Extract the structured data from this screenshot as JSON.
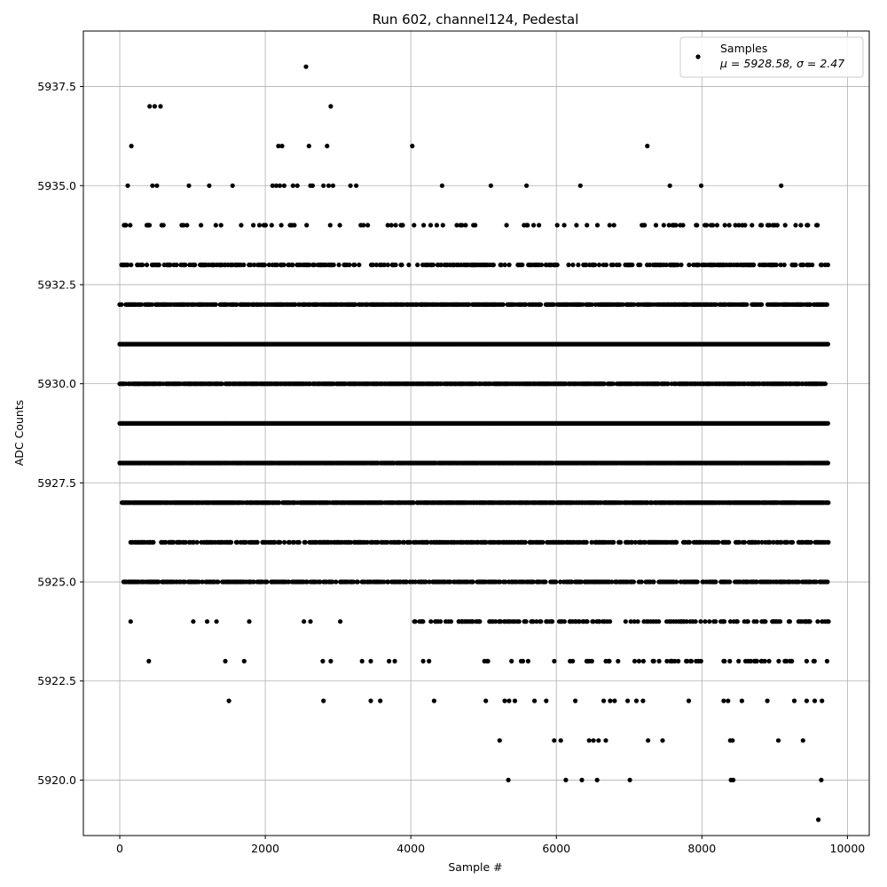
{
  "chart_data": {
    "type": "scatter",
    "title": "Run 602, channel124, Pedestal",
    "xlabel": "Sample #",
    "ylabel": "ADC Counts",
    "xlim": [
      -500,
      10300
    ],
    "ylim": [
      5918.6,
      5938.9
    ],
    "x_ticks": [
      0,
      2000,
      4000,
      6000,
      8000,
      10000
    ],
    "x_tick_labels": [
      "0",
      "2000",
      "4000",
      "6000",
      "8000",
      "10000"
    ],
    "y_ticks": [
      5920.0,
      5922.5,
      5925.0,
      5927.5,
      5930.0,
      5932.5,
      5935.0,
      5937.5
    ],
    "y_tick_labels": [
      "5920.0",
      "5922.5",
      "5925.0",
      "5927.5",
      "5930.0",
      "5932.5",
      "5935.0",
      "5937.5"
    ],
    "grid": true,
    "legend_position": "top-right",
    "marker_color": "#000000",
    "n_samples": 9740,
    "series": [
      {
        "name": "Samples",
        "stats_label": "μ = 5928.58, σ = 2.47",
        "points": [
          [
            0,
            5931
          ],
          [
            0,
            5932
          ],
          [
            0,
            5928
          ],
          [
            20,
            5930
          ],
          [
            40,
            5929
          ],
          [
            60,
            5933
          ],
          [
            80,
            5934
          ],
          [
            100,
            5927
          ],
          [
            110,
            5935
          ],
          [
            120,
            5925
          ],
          [
            150,
            5924
          ],
          [
            160,
            5936
          ],
          [
            170,
            5926
          ],
          [
            400,
            5923
          ],
          [
            410,
            5937
          ],
          [
            480,
            5937
          ],
          [
            560,
            5937
          ],
          [
            450,
            5935
          ],
          [
            510,
            5935
          ],
          [
            950,
            5935
          ],
          [
            1230,
            5935
          ],
          [
            1550,
            5935
          ],
          [
            1500,
            5922
          ],
          [
            1450,
            5923
          ],
          [
            1710,
            5923
          ],
          [
            1780,
            5924
          ],
          [
            1010,
            5924
          ],
          [
            1200,
            5924
          ],
          [
            1330,
            5924
          ],
          [
            2180,
            5936
          ],
          [
            2230,
            5936
          ],
          [
            2100,
            5935
          ],
          [
            2150,
            5935
          ],
          [
            2200,
            5935
          ],
          [
            2260,
            5935
          ],
          [
            2380,
            5935
          ],
          [
            2440,
            5935
          ],
          [
            2560,
            5938
          ],
          [
            2600,
            5936
          ],
          [
            2620,
            5935
          ],
          [
            2650,
            5935
          ],
          [
            2850,
            5936
          ],
          [
            2900,
            5937
          ],
          [
            2800,
            5935
          ],
          [
            2870,
            5935
          ],
          [
            2930,
            5935
          ],
          [
            3170,
            5935
          ],
          [
            3250,
            5935
          ],
          [
            2530,
            5924
          ],
          [
            2620,
            5924
          ],
          [
            2800,
            5922
          ],
          [
            2790,
            5923
          ],
          [
            2900,
            5923
          ],
          [
            3030,
            5924
          ],
          [
            3450,
            5922
          ],
          [
            3580,
            5922
          ],
          [
            3330,
            5923
          ],
          [
            3450,
            5923
          ],
          [
            3700,
            5923
          ],
          [
            3780,
            5923
          ],
          [
            4020,
            5936
          ],
          [
            4430,
            5935
          ],
          [
            4320,
            5922
          ],
          [
            4170,
            5923
          ],
          [
            4250,
            5923
          ],
          [
            4660,
            5924
          ],
          [
            4710,
            5924
          ],
          [
            5100,
            5935
          ],
          [
            5590,
            5935
          ],
          [
            6330,
            5935
          ],
          [
            7250,
            5936
          ],
          [
            7560,
            5935
          ],
          [
            7990,
            5935
          ],
          [
            9090,
            5935
          ],
          [
            5030,
            5922
          ],
          [
            5050,
            5923
          ],
          [
            5220,
            5921
          ],
          [
            5340,
            5920
          ],
          [
            5290,
            5922
          ],
          [
            5350,
            5922
          ],
          [
            5430,
            5922
          ],
          [
            5700,
            5922
          ],
          [
            5860,
            5922
          ],
          [
            5970,
            5921
          ],
          [
            6060,
            5921
          ],
          [
            6130,
            5920
          ],
          [
            6350,
            5920
          ],
          [
            6560,
            5920
          ],
          [
            6260,
            5922
          ],
          [
            6450,
            5921
          ],
          [
            6510,
            5921
          ],
          [
            6580,
            5921
          ],
          [
            6680,
            5921
          ],
          [
            6650,
            5922
          ],
          [
            6740,
            5922
          ],
          [
            6800,
            5922
          ],
          [
            7010,
            5920
          ],
          [
            6980,
            5922
          ],
          [
            7100,
            5922
          ],
          [
            7190,
            5922
          ],
          [
            7260,
            5921
          ],
          [
            7460,
            5921
          ],
          [
            7820,
            5922
          ],
          [
            7920,
            5923
          ],
          [
            8300,
            5922
          ],
          [
            8360,
            5922
          ],
          [
            8390,
            5921
          ],
          [
            8420,
            5921
          ],
          [
            8400,
            5920
          ],
          [
            8430,
            5920
          ],
          [
            8550,
            5922
          ],
          [
            8900,
            5922
          ],
          [
            9050,
            5921
          ],
          [
            9270,
            5922
          ],
          [
            9390,
            5921
          ],
          [
            9440,
            5922
          ],
          [
            9550,
            5922
          ],
          [
            9600,
            5919
          ],
          [
            9640,
            5920
          ],
          [
            9650,
            5922
          ],
          [
            9720,
            5923
          ],
          [
            9740,
            5924
          ]
        ]
      }
    ],
    "dense_rows": [
      {
        "y": 5931,
        "density": 1.0,
        "start": 0,
        "end": 9740
      },
      {
        "y": 5929,
        "density": 1.0,
        "start": 0,
        "end": 9740
      },
      {
        "y": 5928,
        "density": 0.9,
        "start": 0,
        "end": 9740
      },
      {
        "y": 5927,
        "density": 0.85,
        "start": 30,
        "end": 9740
      },
      {
        "y": 5930,
        "density": 0.8,
        "start": 0,
        "end": 9740
      },
      {
        "y": 5932,
        "density": 0.7,
        "start": 0,
        "end": 9740
      },
      {
        "y": 5925,
        "density": 0.55,
        "start": 30,
        "end": 9740
      },
      {
        "y": 5926,
        "density": 0.5,
        "start": 150,
        "end": 9740
      },
      {
        "y": 5933,
        "density": 0.35,
        "start": 0,
        "end": 9740
      },
      {
        "y": 5924,
        "density": 0.3,
        "start": 4000,
        "end": 9740
      },
      {
        "y": 5934,
        "density": 0.15,
        "start": 0,
        "end": 9700
      },
      {
        "y": 5923,
        "density": 0.15,
        "start": 5000,
        "end": 9740
      }
    ]
  }
}
